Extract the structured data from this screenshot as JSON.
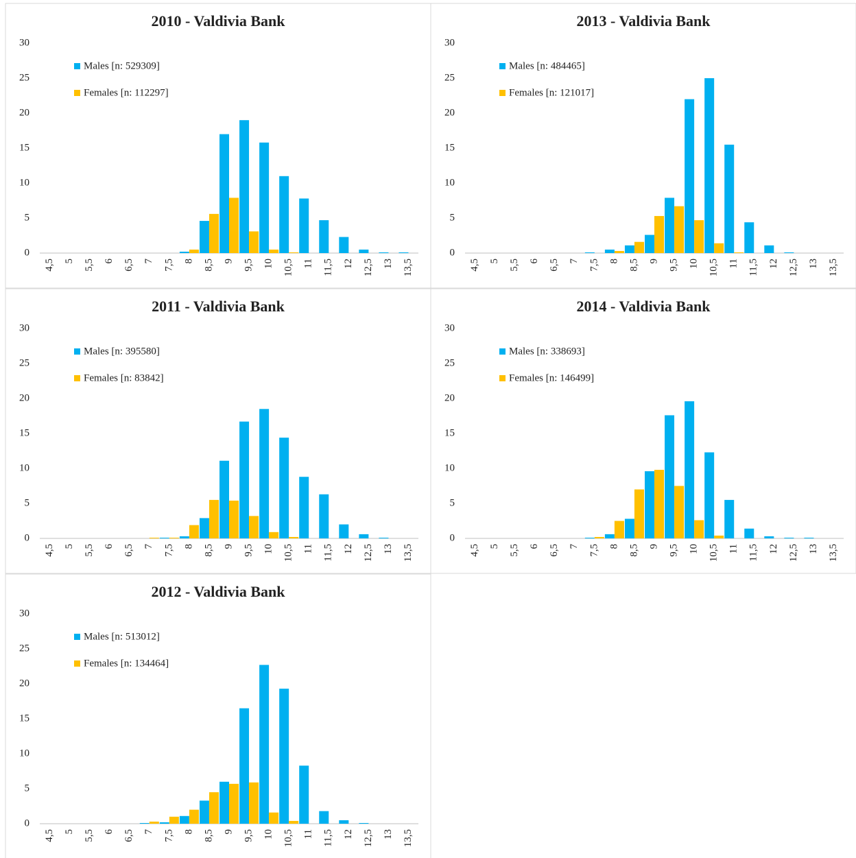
{
  "chart_data": [
    {
      "type": "bar",
      "title": "2010 - Valdivia Bank",
      "categories": [
        "4,5",
        "5",
        "5,5",
        "6",
        "6,5",
        "7",
        "7,5",
        "8",
        "8,5",
        "9",
        "9,5",
        "10",
        "10,5",
        "11",
        "11,5",
        "12",
        "12,5",
        "13",
        "13,5"
      ],
      "series": [
        {
          "name": "Males [n: 529309]",
          "color": "#00b0f0",
          "values": [
            0,
            0,
            0,
            0,
            0,
            0,
            0,
            0.2,
            4.6,
            17,
            19,
            15.8,
            11,
            7.8,
            4.7,
            2.3,
            0.5,
            0.1,
            0.1
          ]
        },
        {
          "name": "Females [n: 112297]",
          "color": "#ffc000",
          "values": [
            0,
            0,
            0,
            0,
            0,
            0,
            0,
            0.5,
            5.6,
            7.9,
            3.1,
            0.5,
            0.1,
            0,
            0,
            0,
            0,
            0,
            0
          ]
        }
      ],
      "ylim": [
        0,
        30
      ],
      "yticks": [
        0,
        5,
        10,
        15,
        20,
        25,
        30
      ],
      "grid": false,
      "legend": "upper left"
    },
    {
      "type": "bar",
      "title": "2013 - Valdivia Bank",
      "categories": [
        "4,5",
        "5",
        "5,5",
        "6",
        "6,5",
        "7",
        "7,5",
        "8",
        "8,5",
        "9",
        "9,5",
        "10",
        "10,5",
        "11",
        "11,5",
        "12",
        "12,5",
        "13",
        "13,5"
      ],
      "series": [
        {
          "name": "Males [n: 484465]",
          "color": "#00b0f0",
          "values": [
            0,
            0,
            0,
            0,
            0,
            0,
            0.1,
            0.5,
            1.1,
            2.6,
            7.9,
            22,
            25,
            15.5,
            4.4,
            1.1,
            0.1,
            0,
            0
          ]
        },
        {
          "name": "Females [n: 121017]",
          "color": "#ffc000",
          "values": [
            0,
            0,
            0,
            0,
            0,
            0,
            0,
            0.3,
            1.6,
            5.3,
            6.7,
            4.7,
            1.4,
            0.1,
            0,
            0,
            0,
            0,
            0
          ]
        }
      ],
      "ylim": [
        0,
        30
      ],
      "yticks": [
        0,
        5,
        10,
        15,
        20,
        25,
        30
      ],
      "grid": false,
      "legend": "upper left"
    },
    {
      "type": "bar",
      "title": "2011 - Valdivia Bank",
      "categories": [
        "4,5",
        "5",
        "5,5",
        "6",
        "6,5",
        "7",
        "7,5",
        "8",
        "8,5",
        "9",
        "9,5",
        "10",
        "10,5",
        "11",
        "11,5",
        "12",
        "12,5",
        "13",
        "13,5"
      ],
      "series": [
        {
          "name": "Males [n: 395580]",
          "color": "#00b0f0",
          "values": [
            0,
            0,
            0,
            0,
            0,
            0,
            0.1,
            0.3,
            2.9,
            11.1,
            16.7,
            18.5,
            14.4,
            8.8,
            6.3,
            2,
            0.6,
            0.1,
            0
          ]
        },
        {
          "name": "Females [n: 83842]",
          "color": "#ffc000",
          "values": [
            0,
            0,
            0,
            0,
            0,
            0.1,
            0.1,
            1.9,
            5.5,
            5.4,
            3.2,
            0.9,
            0.2,
            0,
            0,
            0,
            0,
            0,
            0
          ]
        }
      ],
      "ylim": [
        0,
        30
      ],
      "yticks": [
        0,
        5,
        10,
        15,
        20,
        25,
        30
      ],
      "grid": false,
      "legend": "upper left"
    },
    {
      "type": "bar",
      "title": "2014 - Valdivia Bank",
      "categories": [
        "4,5",
        "5",
        "5,5",
        "6",
        "6,5",
        "7",
        "7,5",
        "8",
        "8,5",
        "9",
        "9,5",
        "10",
        "10,5",
        "11",
        "11,5",
        "12",
        "12,5",
        "13",
        "13,5"
      ],
      "series": [
        {
          "name": "Males [n: 338693]",
          "color": "#00b0f0",
          "values": [
            0,
            0,
            0,
            0,
            0,
            0,
            0.1,
            0.6,
            2.8,
            9.6,
            17.6,
            19.6,
            12.3,
            5.5,
            1.4,
            0.3,
            0.1,
            0.1,
            0
          ]
        },
        {
          "name": "Females [n: 146499]",
          "color": "#ffc000",
          "values": [
            0,
            0,
            0,
            0,
            0,
            0,
            0.2,
            2.5,
            7,
            9.8,
            7.5,
            2.6,
            0.4,
            0,
            0,
            0,
            0,
            0,
            0
          ]
        }
      ],
      "ylim": [
        0,
        30
      ],
      "yticks": [
        0,
        5,
        10,
        15,
        20,
        25,
        30
      ],
      "grid": false,
      "legend": "upper left"
    },
    {
      "type": "bar",
      "title": "2012 - Valdivia Bank",
      "categories": [
        "4,5",
        "5",
        "5,5",
        "6",
        "6,5",
        "7",
        "7,5",
        "8",
        "8,5",
        "9",
        "9,5",
        "10",
        "10,5",
        "11",
        "11,5",
        "12",
        "12,5",
        "13",
        "13,5"
      ],
      "series": [
        {
          "name": "Males [n: 513012]",
          "color": "#00b0f0",
          "values": [
            0,
            0,
            0,
            0,
            0,
            0.1,
            0.2,
            1.1,
            3.3,
            6,
            16.5,
            22.7,
            19.3,
            8.3,
            1.8,
            0.5,
            0.1,
            0,
            0
          ]
        },
        {
          "name": "Females [n: 134464]",
          "color": "#ffc000",
          "values": [
            0,
            0,
            0,
            0,
            0,
            0.3,
            1,
            2,
            4.5,
            5.7,
            5.9,
            1.6,
            0.4,
            0,
            0,
            0,
            0,
            0,
            0
          ]
        }
      ],
      "ylim": [
        0,
        30
      ],
      "yticks": [
        0,
        5,
        10,
        15,
        20,
        25,
        30
      ],
      "grid": false,
      "legend": "upper left"
    }
  ]
}
